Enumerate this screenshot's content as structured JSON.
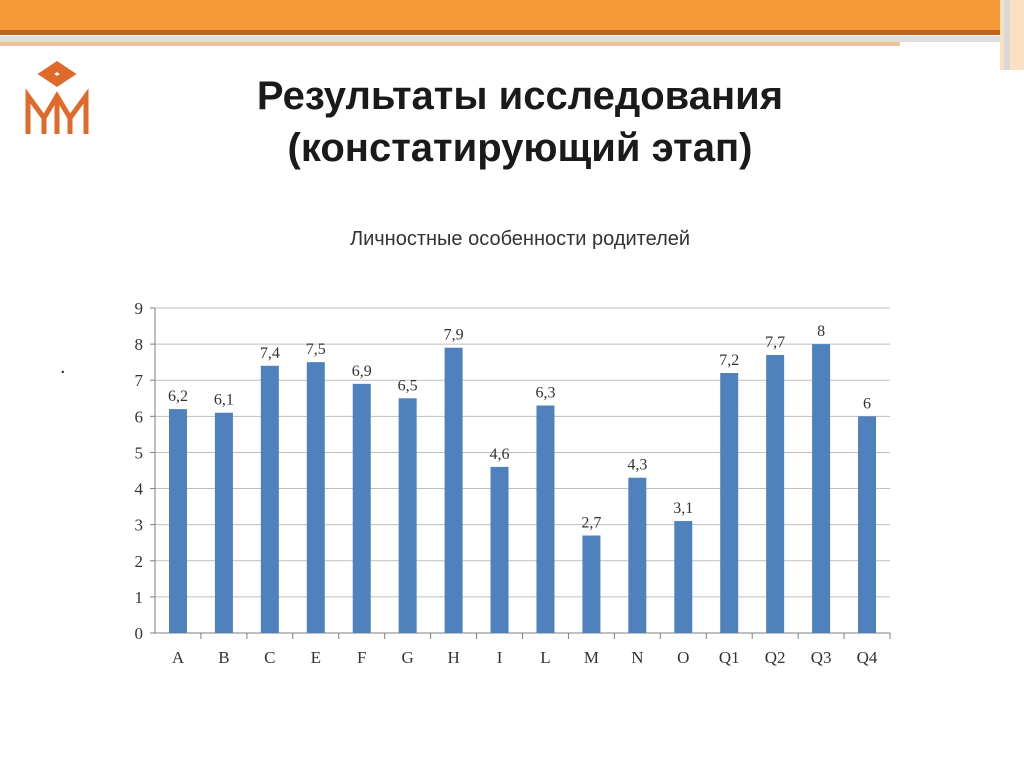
{
  "slide": {
    "title_line1": "Результаты исследования",
    "title_line2": "(констатирующий этап)",
    "bullet": "."
  },
  "colors": {
    "accent_orange": "#f79a3a",
    "accent_dark_orange": "#c0641a",
    "bar_blue": "#4f81bd",
    "logo_orange": "#e06a2c"
  },
  "icons": {
    "logo": "university-monogram-logo"
  },
  "chart_data": {
    "type": "bar",
    "title": "Личностные особенности родителей",
    "xlabel": "",
    "ylabel": "",
    "categories": [
      "A",
      "B",
      "C",
      "E",
      "F",
      "G",
      "H",
      "I",
      "L",
      "M",
      "N",
      "O",
      "Q1",
      "Q2",
      "Q3",
      "Q4"
    ],
    "values": [
      6.2,
      6.1,
      7.4,
      7.5,
      6.9,
      6.5,
      7.9,
      4.6,
      6.3,
      2.7,
      4.3,
      3.1,
      7.2,
      7.7,
      8,
      6
    ],
    "value_labels": [
      "6,2",
      "6,1",
      "7,4",
      "7,5",
      "6,9",
      "6,5",
      "7,9",
      "4,6",
      "6,3",
      "2,7",
      "4,3",
      "3,1",
      "7,2",
      "7,7",
      "8",
      "6"
    ],
    "ylim": [
      0,
      9
    ],
    "yticks": [
      "0",
      "1",
      "2",
      "3",
      "4",
      "5",
      "6",
      "7",
      "8",
      "9"
    ],
    "grid": true,
    "legend": "none"
  }
}
